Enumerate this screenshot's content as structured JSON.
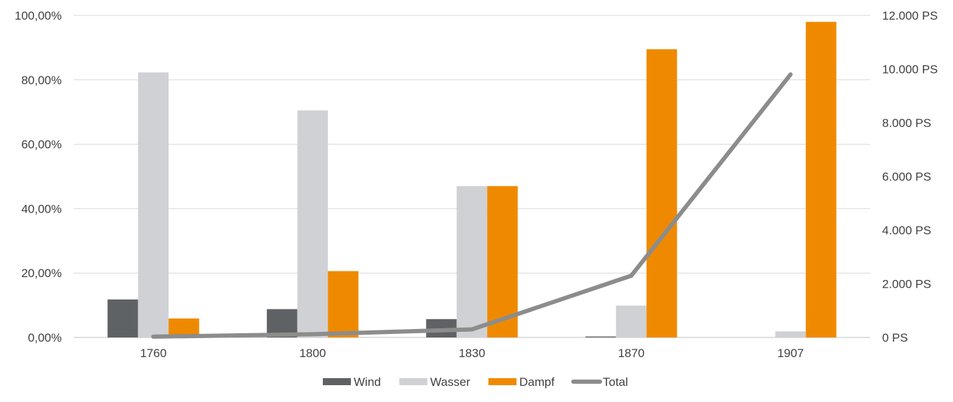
{
  "chart_data": {
    "type": "bar",
    "categories": [
      "1760",
      "1800",
      "1830",
      "1870",
      "1907"
    ],
    "series": [
      {
        "name": "Wind",
        "kind": "bar",
        "axis": "left",
        "color": "#5f6265",
        "values": [
          11.8,
          8.8,
          5.7,
          0.3,
          0.0
        ]
      },
      {
        "name": "Wasser",
        "kind": "bar",
        "axis": "left",
        "color": "#d0d1d4",
        "values": [
          82.3,
          70.5,
          47.0,
          9.9,
          1.9
        ]
      },
      {
        "name": "Dampf",
        "kind": "bar",
        "axis": "left",
        "color": "#ef8a00",
        "values": [
          5.9,
          20.6,
          47.0,
          89.5,
          98.0
        ]
      },
      {
        "name": "Total",
        "kind": "line",
        "axis": "right",
        "color": "#8c8c8c",
        "values": [
          30,
          120,
          300,
          2300,
          9800
        ]
      }
    ],
    "y_left": {
      "ylim": [
        0,
        100
      ],
      "ticks": [
        0,
        20,
        40,
        60,
        80,
        100
      ],
      "tick_labels": [
        "0,00%",
        "20,00%",
        "40,00%",
        "60,00%",
        "80,00%",
        "100,00%"
      ]
    },
    "y_right": {
      "ylim": [
        0,
        12000
      ],
      "ticks": [
        0,
        2000,
        4000,
        6000,
        8000,
        10000,
        12000
      ],
      "tick_labels": [
        "0 PS",
        "2.000 PS",
        "4.000 PS",
        "6.000 PS",
        "8.000 PS",
        "10.000 PS",
        "12.000 PS"
      ]
    },
    "title": "",
    "xlabel": "",
    "ylabel": "",
    "grid": true,
    "legend": {
      "position": "bottom",
      "entries": [
        "Wind",
        "Wasser",
        "Dampf",
        "Total"
      ]
    }
  }
}
